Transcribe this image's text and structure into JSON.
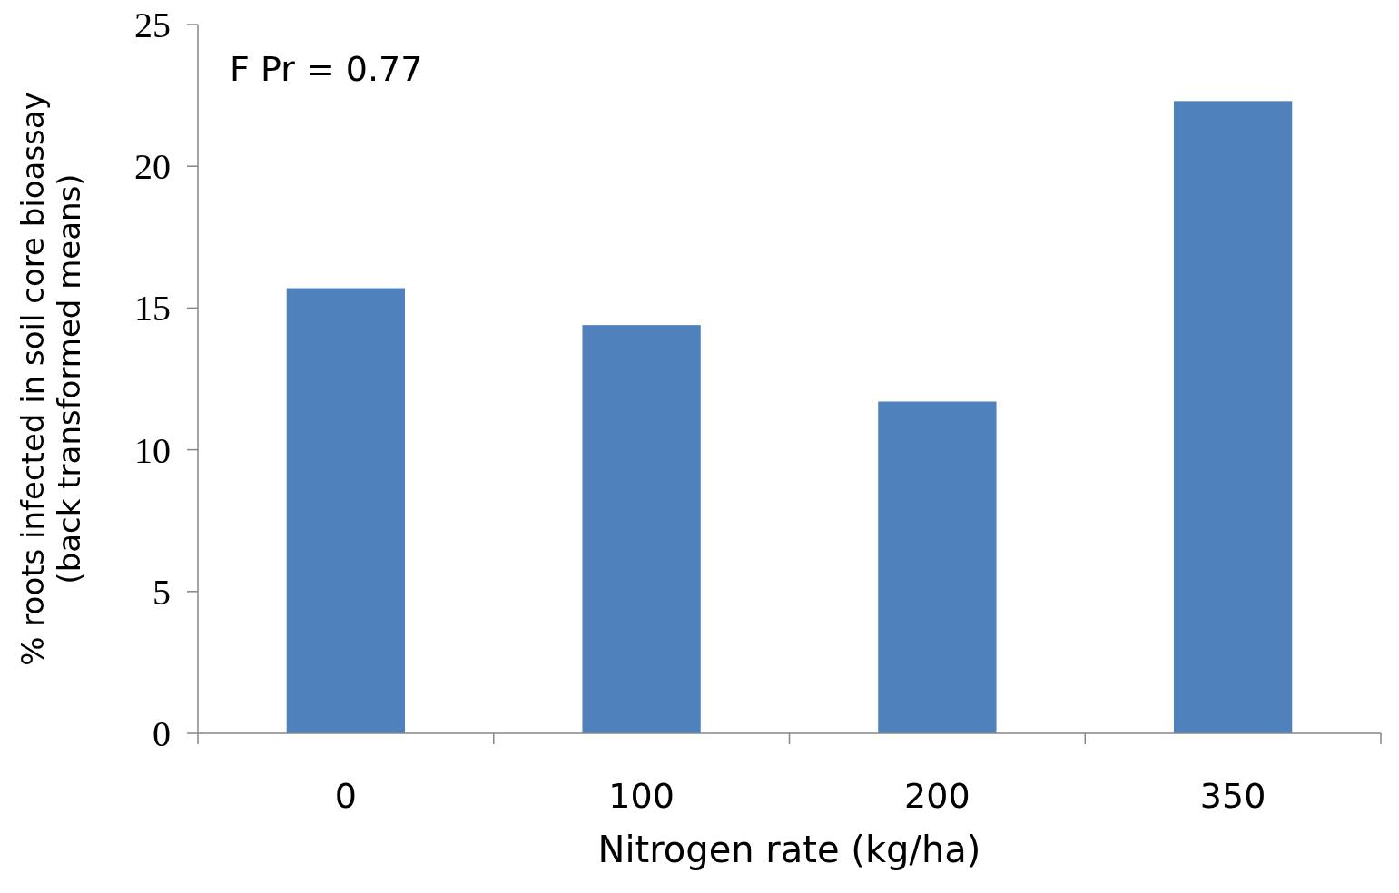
{
  "chart_data": {
    "type": "bar",
    "categories": [
      "0",
      "100",
      "200",
      "350"
    ],
    "values": [
      15.7,
      14.4,
      11.7,
      22.3
    ],
    "color": "#4f81bd",
    "xlabel": "Nitrogen rate (kg/ha)",
    "ylabel": "% roots infected in soil core bioassay\n(back transformed means)",
    "ylim": [
      0,
      25
    ],
    "yticks": [
      0,
      5,
      10,
      15,
      20,
      25
    ],
    "annotations": [
      "F Pr = 0.77"
    ]
  }
}
